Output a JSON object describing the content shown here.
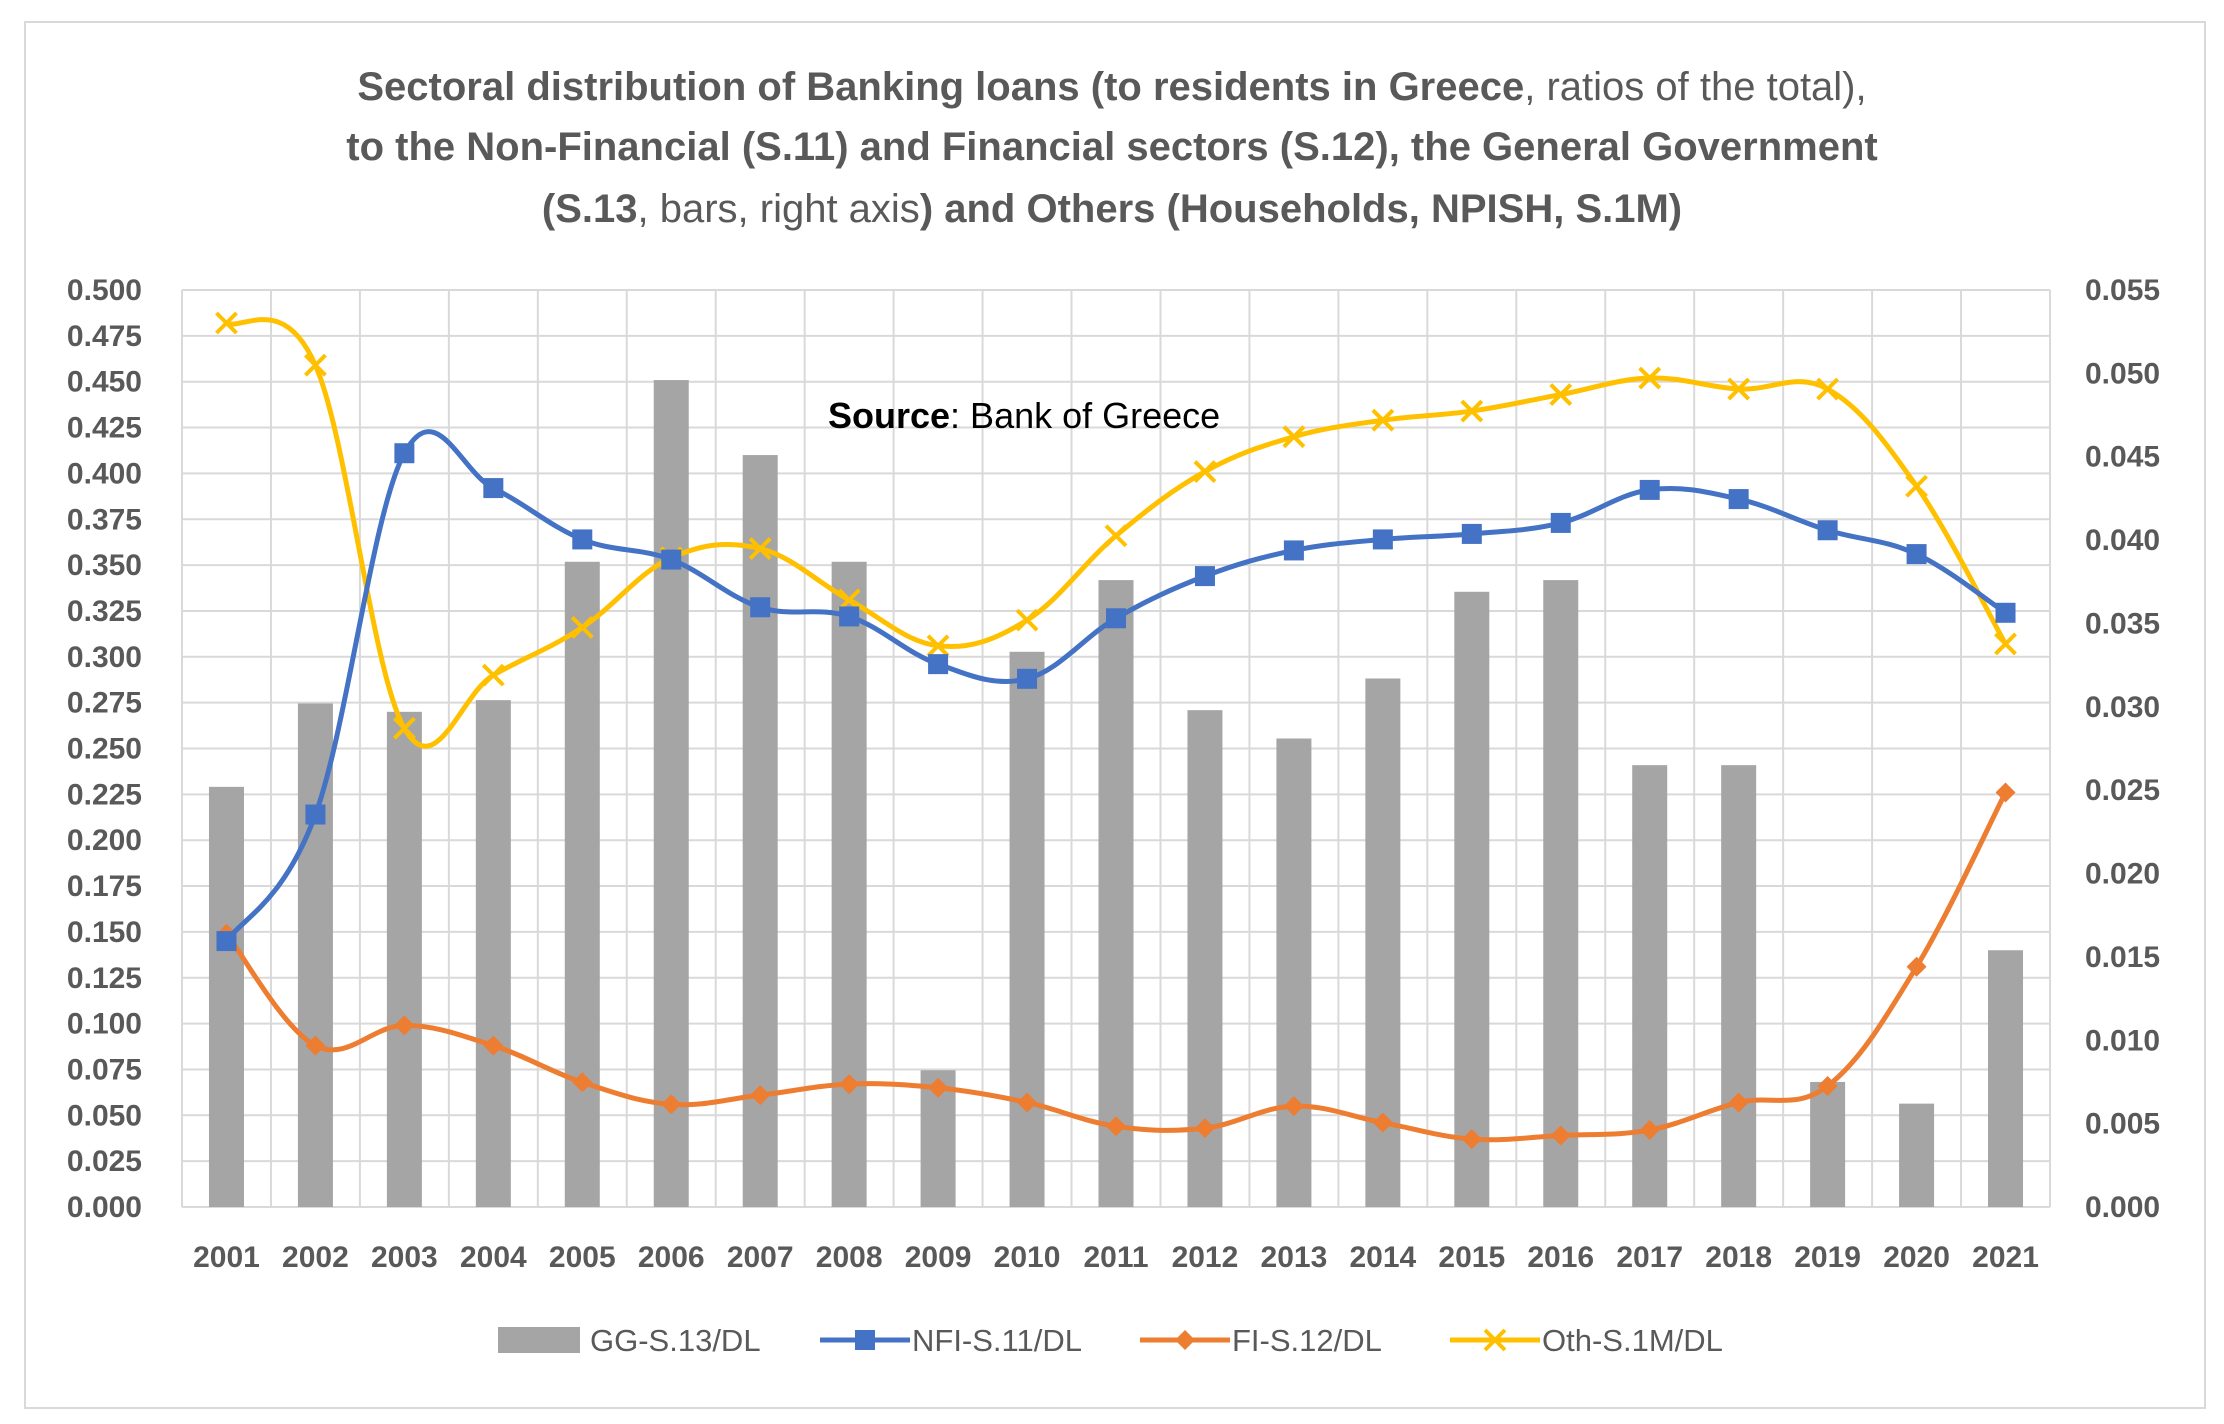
{
  "chart_data": {
    "type": "bar+line",
    "title_lines": [
      [
        {
          "text": "Sectoral distribution of Banking loans (to residents in Greece",
          "bold": true
        },
        {
          "text": ", ratios of the total),",
          "bold": false
        }
      ],
      [
        {
          "text": "to the Non-Financial  (S.11) and Financial  sectors (S.12), the General Government",
          "bold": true
        }
      ],
      [
        {
          "text": "(S.13",
          "bold": true
        },
        {
          "text": ", bars, right axis",
          "bold": false
        },
        {
          "text": ") and Others (Households, NPISH, S.1M)",
          "bold": true
        }
      ]
    ],
    "annotation": {
      "bold": "Source",
      "text": ": Bank of Greece"
    },
    "categories": [
      "2001",
      "2002",
      "2003",
      "2004",
      "2005",
      "2006",
      "2007",
      "2008",
      "2009",
      "2010",
      "2011",
      "2012",
      "2013",
      "2014",
      "2015",
      "2016",
      "2017",
      "2018",
      "2019",
      "2020",
      "2021"
    ],
    "left_axis": {
      "ylim": [
        0,
        0.5
      ],
      "ticks": [
        "0.000",
        "0.025",
        "0.050",
        "0.075",
        "0.100",
        "0.125",
        "0.150",
        "0.175",
        "0.200",
        "0.225",
        "0.250",
        "0.275",
        "0.300",
        "0.325",
        "0.350",
        "0.375",
        "0.400",
        "0.425",
        "0.450",
        "0.475",
        "0.500"
      ]
    },
    "right_axis": {
      "ylim": [
        0,
        0.055
      ],
      "ticks": [
        "0.000",
        "0.005",
        "0.010",
        "0.015",
        "0.020",
        "0.025",
        "0.030",
        "0.035",
        "0.040",
        "0.045",
        "0.050",
        "0.055"
      ]
    },
    "grid": true,
    "legend_position": "bottom",
    "bars": {
      "name": "GG-S.13/DL",
      "axis": "right",
      "color": "#a5a5a5",
      "values": [
        0.0252,
        0.0302,
        0.0297,
        0.0304,
        0.0387,
        0.0496,
        0.0451,
        0.0387,
        0.0082,
        0.0333,
        0.0376,
        0.0298,
        0.0281,
        0.0317,
        0.0369,
        0.0376,
        0.0265,
        0.0265,
        0.0075,
        0.0062,
        0.0154
      ]
    },
    "series": [
      {
        "name": "NFI-S.11/DL",
        "axis": "left",
        "color": "#4472c4",
        "marker": "square",
        "values": [
          0.145,
          0.214,
          0.411,
          0.392,
          0.364,
          0.353,
          0.327,
          0.322,
          0.296,
          0.288,
          0.321,
          0.344,
          0.358,
          0.364,
          0.367,
          0.373,
          0.391,
          0.386,
          0.369,
          0.356,
          0.324
        ]
      },
      {
        "name": "FI-S.12/DL",
        "axis": "left",
        "color": "#ed7d31",
        "marker": "diamond",
        "values": [
          0.149,
          0.088,
          0.099,
          0.088,
          0.068,
          0.056,
          0.061,
          0.067,
          0.065,
          0.057,
          0.044,
          0.043,
          0.055,
          0.046,
          0.037,
          0.039,
          0.042,
          0.057,
          0.066,
          0.131,
          0.226
        ]
      },
      {
        "name": "Oth-S.1M/DL",
        "axis": "left",
        "color": "#ffc000",
        "marker": "x",
        "values": [
          0.482,
          0.459,
          0.261,
          0.29,
          0.316,
          0.354,
          0.359,
          0.331,
          0.306,
          0.32,
          0.366,
          0.401,
          0.42,
          0.429,
          0.434,
          0.443,
          0.452,
          0.446,
          0.446,
          0.393,
          0.307
        ]
      }
    ]
  }
}
